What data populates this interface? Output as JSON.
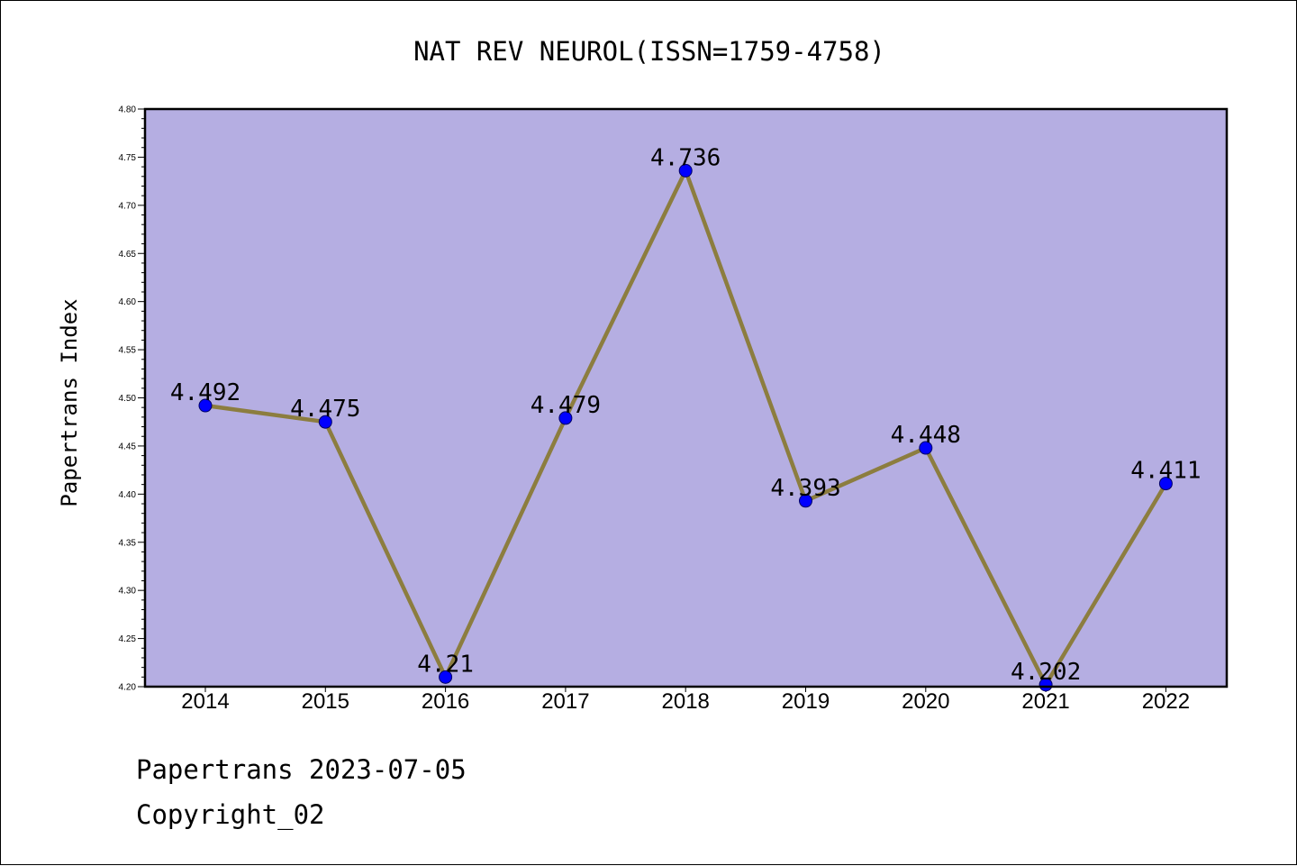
{
  "chart_data": {
    "type": "line",
    "title": "NAT REV NEUROL(ISSN=1759-4758)",
    "xlabel": "",
    "ylabel": "Papertrans Index",
    "categories": [
      "2014",
      "2015",
      "2016",
      "2017",
      "2018",
      "2019",
      "2020",
      "2021",
      "2022"
    ],
    "series": [
      {
        "values": [
          4.492,
          4.475,
          4.21,
          4.479,
          4.736,
          4.393,
          4.448,
          4.202,
          4.411
        ],
        "labels": [
          "4.492",
          "4.475",
          "4.21",
          "4.479",
          "4.736",
          "4.393",
          "4.448",
          "4.202",
          "4.411"
        ]
      }
    ],
    "ylim": [
      4.2,
      4.8
    ],
    "yticks": [
      "4.20",
      "4.25",
      "4.30",
      "4.35",
      "4.40",
      "4.45",
      "4.50",
      "4.55",
      "4.60",
      "4.65",
      "4.70",
      "4.75",
      "4.80"
    ],
    "grid": false,
    "legend": "none",
    "colors": {
      "plot_background": "#b5aee2",
      "line": "#8c7d3f",
      "marker": "#0000ff",
      "marker_edge": "#000066"
    }
  },
  "footer": {
    "line1": "Papertrans 2023-07-05",
    "line2": "Copyright_02"
  }
}
